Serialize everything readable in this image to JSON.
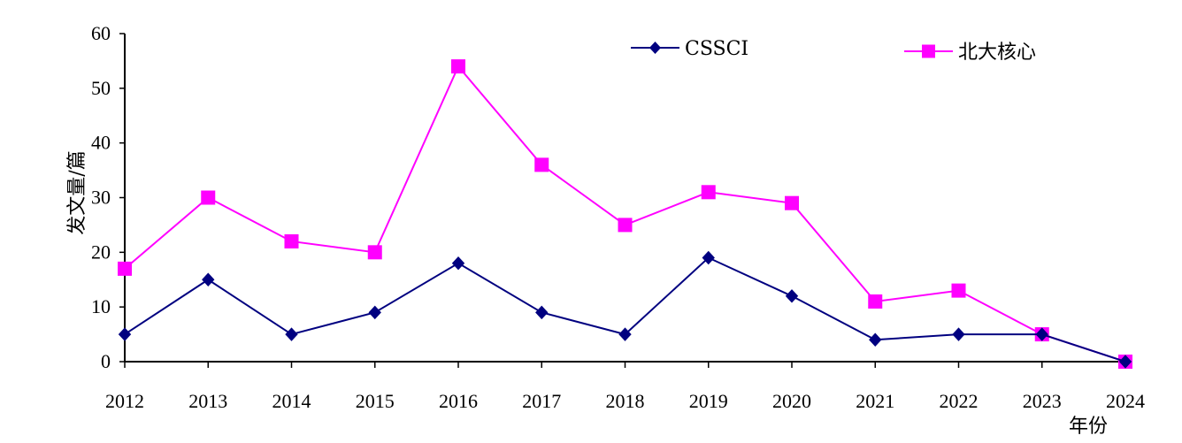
{
  "chart_data": {
    "type": "line",
    "title": "",
    "xlabel": "年份",
    "ylabel": "发文量/篇",
    "x": [
      "2012",
      "2013",
      "2014",
      "2015",
      "2016",
      "2017",
      "2018",
      "2019",
      "2020",
      "2021",
      "2022",
      "2023",
      "2024"
    ],
    "ylim": [
      0,
      60
    ],
    "yticks": [
      "0",
      "10",
      "20",
      "30",
      "40",
      "50",
      "60"
    ],
    "grid": false,
    "legend_position": "top-right",
    "series": [
      {
        "name": "CSSCI",
        "values": [
          5,
          15,
          5,
          9,
          18,
          9,
          5,
          19,
          12,
          4,
          5,
          5,
          0
        ],
        "color": "#000080",
        "marker": "diamond"
      },
      {
        "name": "北大核心",
        "values": [
          17,
          30,
          22,
          20,
          54,
          36,
          25,
          31,
          29,
          11,
          13,
          5,
          0
        ],
        "color": "#ff00ff",
        "marker": "square"
      }
    ]
  }
}
